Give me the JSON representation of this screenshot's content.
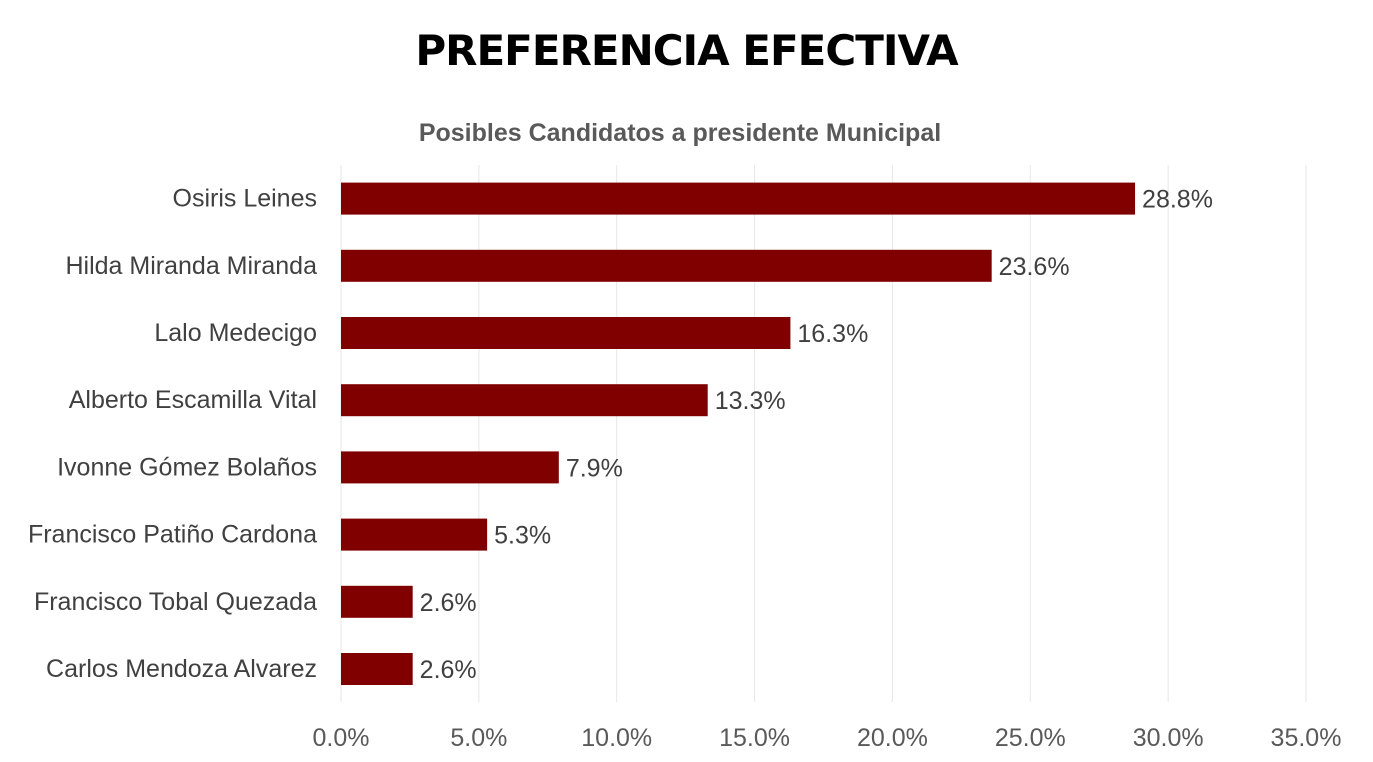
{
  "page": {
    "title": "PREFERENCIA EFECTIVA"
  },
  "chart_data": {
    "type": "bar",
    "orientation": "horizontal",
    "title": "Posibles Candidatos a presidente Municipal",
    "categories": [
      "Osiris Leines",
      "Hilda Miranda Miranda",
      "Lalo Medecigo",
      "Alberto Escamilla Vital",
      "Ivonne Gómez Bolaños",
      "Francisco Patiño Cardona",
      "Francisco Tobal Quezada",
      "Carlos Mendoza Alvarez"
    ],
    "values": [
      28.8,
      23.6,
      16.3,
      13.3,
      7.9,
      5.3,
      2.6,
      2.6
    ],
    "value_labels": [
      "28.8%",
      "23.6%",
      "16.3%",
      "13.3%",
      "7.9%",
      "5.3%",
      "2.6%",
      "2.6%"
    ],
    "xlim": [
      0,
      35
    ],
    "xticks": [
      0,
      5,
      10,
      15,
      20,
      25,
      30,
      35
    ],
    "xtick_labels": [
      "0.0%",
      "5.0%",
      "10.0%",
      "15.0%",
      "20.0%",
      "25.0%",
      "30.0%",
      "35.0%"
    ],
    "grid": "vertical",
    "bar_color": "#800000",
    "grid_color": "#e6e6e6"
  }
}
